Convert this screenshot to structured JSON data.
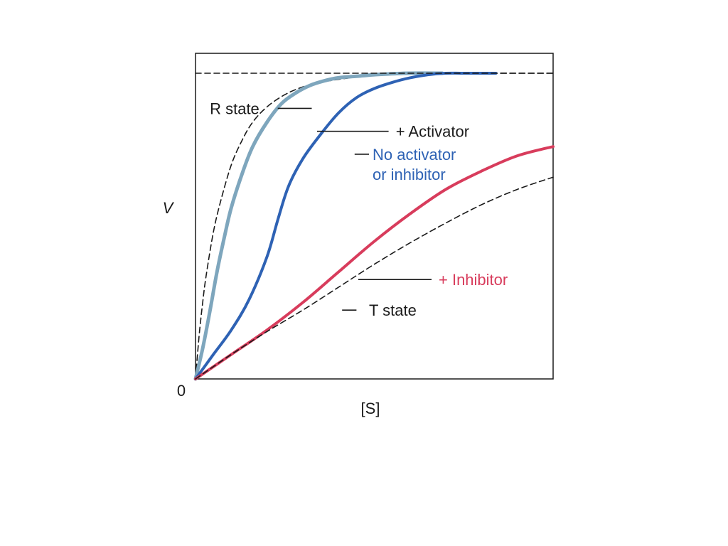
{
  "chart_data": {
    "type": "line",
    "xlabel": "[S]",
    "ylabel": "V",
    "origin_label": "0",
    "xlim": [
      0,
      10
    ],
    "ylim": [
      0,
      1.065
    ],
    "grid": false,
    "series": [
      {
        "key": "r_state",
        "name": "R state",
        "color": "#1a1a1a",
        "dashed": true,
        "width": 1.6,
        "x": [
          0,
          0.1,
          0.2,
          0.3,
          0.5,
          0.7,
          1.0,
          1.3,
          1.6,
          2.0,
          2.5,
          3.0,
          3.5,
          4.0,
          4.5,
          5.0,
          5.5,
          6.0,
          7.0,
          8.0,
          9.0,
          10.0
        ],
        "y": [
          0,
          0.14,
          0.25,
          0.34,
          0.48,
          0.58,
          0.7,
          0.78,
          0.84,
          0.89,
          0.93,
          0.955,
          0.97,
          0.98,
          0.987,
          0.992,
          0.995,
          0.997,
          0.999,
          1.0,
          1.0,
          1.0
        ]
      },
      {
        "key": "activator",
        "name": "+ Activator",
        "color": "#7ea6bd",
        "dashed": false,
        "width": 5,
        "x": [
          0,
          0.2,
          0.4,
          0.6,
          0.8,
          1.0,
          1.3,
          1.6,
          2.0,
          2.4,
          2.8,
          3.2,
          3.6,
          4.0,
          4.5,
          5.0,
          5.5,
          6.0,
          6.9
        ],
        "y": [
          0,
          0.1,
          0.22,
          0.35,
          0.46,
          0.56,
          0.67,
          0.76,
          0.84,
          0.9,
          0.935,
          0.96,
          0.975,
          0.985,
          0.99,
          0.995,
          0.998,
          1.0,
          1.0
        ]
      },
      {
        "key": "no_modifier",
        "name": "No activator or inhibitor",
        "color": "#2e62b4",
        "dashed": false,
        "width": 4,
        "x": [
          0,
          0.5,
          1.0,
          1.5,
          2.0,
          2.3,
          2.6,
          3.0,
          3.5,
          4.0,
          4.5,
          5.0,
          5.5,
          6.0,
          6.5,
          7.0,
          7.5,
          8.4
        ],
        "y": [
          0,
          0.08,
          0.16,
          0.26,
          0.4,
          0.52,
          0.63,
          0.72,
          0.8,
          0.87,
          0.92,
          0.95,
          0.97,
          0.985,
          0.995,
          1.0,
          1.0,
          1.0
        ]
      },
      {
        "key": "inhibitor",
        "name": "+ Inhibitor",
        "color": "#d83c5c",
        "dashed": false,
        "width": 4,
        "x": [
          0,
          1.0,
          2.0,
          3.0,
          4.0,
          5.0,
          6.0,
          7.0,
          8.0,
          9.0,
          10.0
        ],
        "y": [
          0,
          0.08,
          0.16,
          0.25,
          0.35,
          0.45,
          0.54,
          0.62,
          0.68,
          0.73,
          0.76
        ]
      },
      {
        "key": "t_state",
        "name": "T state",
        "color": "#1a1a1a",
        "dashed": true,
        "width": 1.6,
        "x": [
          0,
          1.0,
          2.0,
          3.0,
          4.0,
          5.0,
          6.0,
          7.0,
          8.0,
          9.0,
          10.0
        ],
        "y": [
          0,
          0.08,
          0.155,
          0.225,
          0.3,
          0.375,
          0.445,
          0.51,
          0.57,
          0.62,
          0.66
        ]
      },
      {
        "key": "vmax",
        "name": "",
        "color": "#1a1a1a",
        "dashed": true,
        "width": 1.6,
        "x": [
          0,
          10
        ],
        "y": [
          1.0,
          1.0
        ]
      }
    ],
    "annotations": [
      {
        "key": "r_state",
        "lines": [
          "R state"
        ],
        "color": "#1a1a1a",
        "text_x": 0.4,
        "text_y": 0.885,
        "leader": [
          [
            2.3,
            0.885
          ],
          [
            3.25,
            0.885
          ]
        ]
      },
      {
        "key": "activator",
        "lines": [
          "+ Activator"
        ],
        "color": "#1a1a1a",
        "text_x": 5.6,
        "text_y": 0.81,
        "leader": [
          [
            3.4,
            0.81
          ],
          [
            5.4,
            0.81
          ]
        ]
      },
      {
        "key": "no_modifier",
        "lines": [
          "No activator",
          "or inhibitor"
        ],
        "color": "#2e62b4",
        "text_x": 4.95,
        "text_y": 0.735,
        "leader": [
          [
            4.45,
            0.735
          ],
          [
            4.85,
            0.735
          ]
        ]
      },
      {
        "key": "inhibitor",
        "lines": [
          "+ Inhibitor"
        ],
        "color": "#d83c5c",
        "text_x": 6.8,
        "text_y": 0.325,
        "leader": [
          [
            4.55,
            0.325
          ],
          [
            6.6,
            0.325
          ]
        ]
      },
      {
        "key": "t_state",
        "lines": [
          "T state"
        ],
        "color": "#1a1a1a",
        "text_x": 4.85,
        "text_y": 0.225,
        "leader": [
          [
            4.1,
            0.225
          ],
          [
            4.5,
            0.225
          ]
        ]
      }
    ]
  }
}
